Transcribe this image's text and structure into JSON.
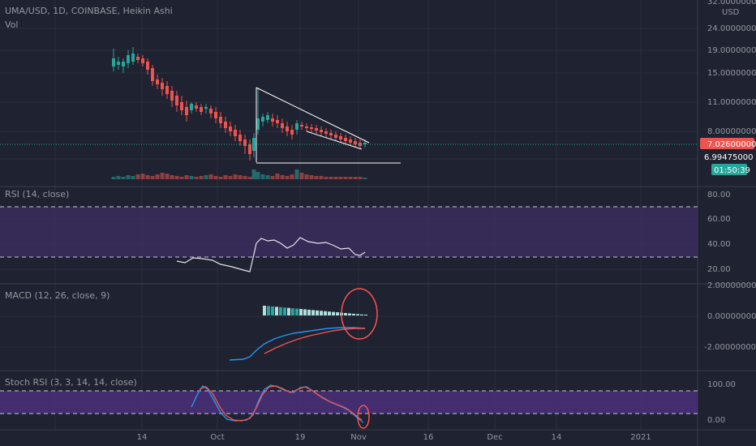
{
  "header": {
    "symbol_line": "UMA/USD, 1D, COINBASE, Heikin Ashi",
    "vol_label": "Vol",
    "currency": "USD"
  },
  "price_scale": {
    "ticks": [
      "32.00000000",
      "24.00000000",
      "19.00000000",
      "15.00000000",
      "11.00000000",
      "8.00000000"
    ],
    "last_price": "7.02600000",
    "cursor_price": "6.99475000",
    "countdown": "01:50:39"
  },
  "rsi": {
    "label": "RSI (14, close)",
    "ticks": [
      "80.00",
      "60.00",
      "40.00",
      "20.00"
    ]
  },
  "macd": {
    "label": "MACD (12, 26, close, 9)",
    "ticks": [
      "2.00000000",
      "0.00000000",
      "-2.00000000"
    ]
  },
  "stoch": {
    "label": "Stoch RSI (3, 3, 14, 14, close)",
    "ticks": [
      "100.00",
      "0.00"
    ]
  },
  "time_axis": {
    "labels": [
      "14",
      "Oct",
      "19",
      "Nov",
      "16",
      "Dec",
      "14",
      "2021"
    ]
  },
  "colors": {
    "background": "#1f2230",
    "grid": "#2b2f3d",
    "bull": "#26a69a",
    "bear": "#ef5350",
    "rsi_band": "#3b2c5e",
    "stoch_band": "#4a2f7a",
    "macd_line": "#2196f3",
    "signal_line": "#ef5350",
    "annotation": "#ffffff",
    "circle": "#ff5252"
  },
  "chart_data": {
    "type": "candlestick",
    "x_labels": [
      "14",
      "Oct",
      "19",
      "Nov",
      "16",
      "Dec",
      "14",
      "2021"
    ],
    "price_axis_ticks": [
      32,
      24,
      19,
      15,
      11,
      8
    ],
    "last_price": 7.026,
    "rsi_levels": [
      70,
      30
    ]
  }
}
